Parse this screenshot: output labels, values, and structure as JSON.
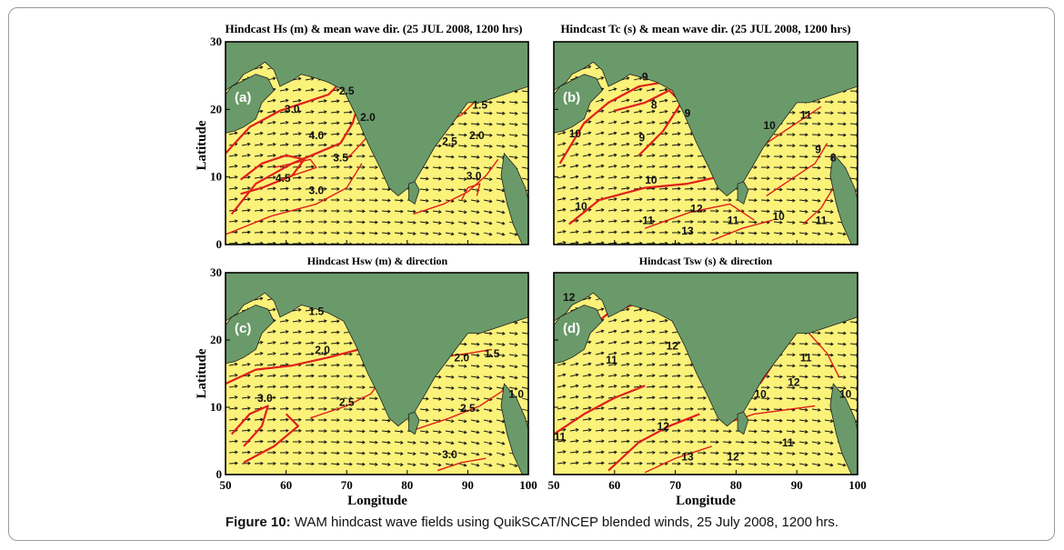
{
  "caption": {
    "label": "Figure 10:",
    "text": " WAM hindcast wave fields using QuikSCAT/NCEP blended winds, 25 July 2008, 1200 hrs."
  },
  "axes": {
    "ylabel": "Latitude",
    "xlabel": "Longitude",
    "yticks": [
      "30",
      "20",
      "10",
      "0"
    ],
    "xticks": [
      "50",
      "60",
      "70",
      "80",
      "90",
      "100"
    ]
  },
  "colors": {
    "land": "#6a9a6a",
    "sea": "#fbf27a",
    "contour": "#e0201a",
    "arrow": "#111111"
  },
  "panels": [
    {
      "id": "a",
      "label": "(a)",
      "title": "Hindcast Hs (m) & mean wave dir. (25 JUL 2008, 1200 hrs)",
      "contour_labels": [
        "2.5",
        "3.0",
        "2.0",
        "4.0",
        "3.5",
        "4.5",
        "3.0",
        "1.5",
        "2.0",
        "2.5",
        "3.0"
      ]
    },
    {
      "id": "b",
      "label": "(b)",
      "title": "Hindcast Tc (s) & mean wave dir. (25 JUL 2008, 1200 hrs)",
      "contour_labels": [
        "9",
        "8",
        "10",
        "9",
        "9",
        "10",
        "10",
        "11",
        "12",
        "13",
        "11",
        "10",
        "11",
        "10",
        "9",
        "8",
        "11"
      ]
    },
    {
      "id": "c",
      "label": "(c)",
      "title": "Hindcast Hsw (m) & direction",
      "contour_labels": [
        "1.5",
        "2.0",
        "3.0",
        "2.5",
        "2.0",
        "1.5",
        "1.0",
        "2.5",
        "3.0"
      ]
    },
    {
      "id": "d",
      "label": "(d)",
      "title": "Hindcast Tsw (s) & direction",
      "contour_labels": [
        "12",
        "11",
        "12",
        "11",
        "12",
        "13",
        "12",
        "11",
        "10",
        "11",
        "12",
        "10"
      ]
    }
  ]
}
